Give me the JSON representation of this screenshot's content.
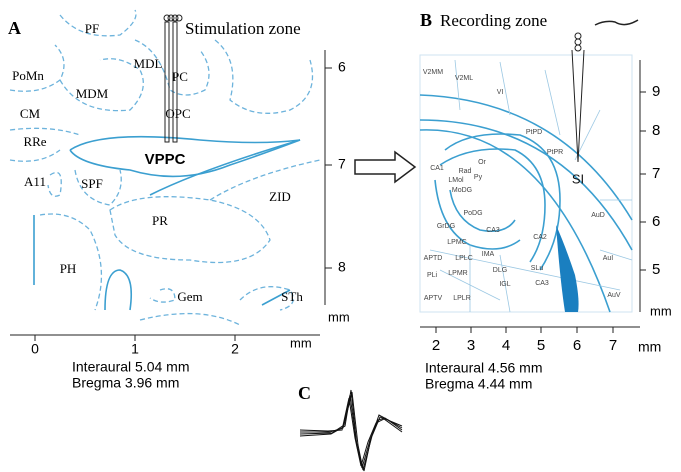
{
  "panel_a": {
    "label": "A",
    "title": "Stimulation zone",
    "regions": [
      "PF",
      "MDL",
      "PC",
      "PoMn",
      "MDM",
      "CM",
      "OPC",
      "RRe",
      "VPPC",
      "A11",
      "SPF",
      "ZID",
      "PR",
      "PH",
      "Gem",
      "STh"
    ],
    "y_axis": {
      "ticks": [
        6,
        7,
        8
      ],
      "unit": "mm"
    },
    "x_axis": {
      "ticks": [
        0,
        1,
        2
      ],
      "unit": "mm"
    },
    "caption": [
      "Interaural 5.04 mm",
      "Bregma 3.96 mm"
    ]
  },
  "panel_b": {
    "label": "B",
    "title": "Recording zone",
    "regions": [
      "V2MM",
      "V2ML",
      "VI",
      "PtPD",
      "PtPR",
      "SI",
      "CA1",
      "Or",
      "Rad",
      "LMol",
      "Py",
      "MoDG",
      "PoDG",
      "GrDG",
      "CA3",
      "CA2",
      "LPMC",
      "IMA",
      "APTD",
      "LPLC",
      "DLG",
      "PLi",
      "LPMR",
      "SLu",
      "CA3",
      "IGL",
      "APTV",
      "LPLR",
      "AuD",
      "AuI",
      "AuV"
    ],
    "y_axis": {
      "ticks": [
        9,
        8,
        7,
        6,
        5
      ],
      "unit": "mm"
    },
    "x_axis": {
      "ticks": [
        2,
        3,
        4,
        5,
        6,
        7
      ],
      "unit": "mm"
    },
    "caption": [
      "Interaural 4.56 mm",
      "Bregma 4.44 mm"
    ]
  },
  "panel_c": {
    "label": "C"
  }
}
